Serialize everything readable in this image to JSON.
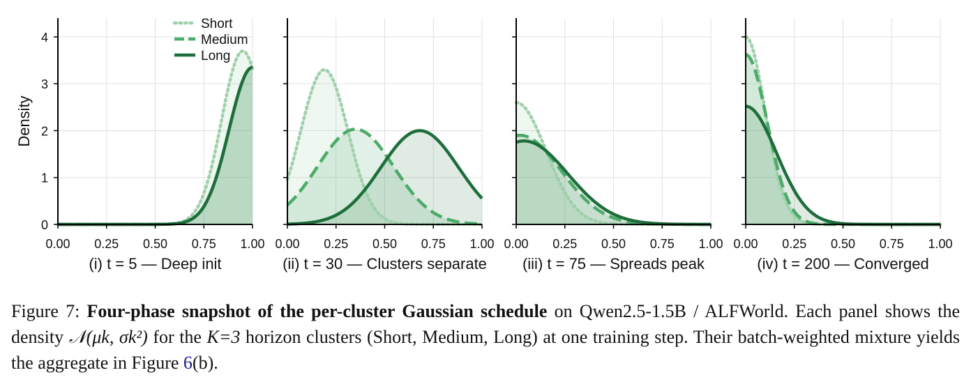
{
  "colors": {
    "short": "#9fd0aa",
    "medium": "#4caa6a",
    "long": "#1e6e3c",
    "grid": "#e0e0e0",
    "axis": "#000000"
  },
  "legend": {
    "location": "top-right of panel (i)",
    "items": [
      {
        "label": "Short",
        "series": "short",
        "dash": "dotted"
      },
      {
        "label": "Medium",
        "series": "medium",
        "dash": "dashed"
      },
      {
        "label": "Long",
        "series": "long",
        "dash": "solid"
      }
    ]
  },
  "chart_data": [
    {
      "type": "area",
      "title": "",
      "xlabel": "(i) t = 5 — Deep init",
      "ylabel": "Density",
      "xlim": [
        0,
        1
      ],
      "ylim": [
        0,
        4.4
      ],
      "x_ticks": [
        "0.00",
        "0.25",
        "0.50",
        "0.75",
        "1.00"
      ],
      "y_ticks": [
        "0",
        "1",
        "2",
        "3",
        "4"
      ],
      "grid": true,
      "series": [
        {
          "name": "Short",
          "mu": 0.95,
          "sigma": 0.108,
          "peak_density": 3.7
        },
        {
          "name": "Medium",
          "mu": 1.0,
          "sigma": 0.12,
          "peak_density": 3.35
        },
        {
          "name": "Long",
          "mu": 1.0,
          "sigma": 0.12,
          "peak_density": 3.35
        }
      ]
    },
    {
      "type": "area",
      "title": "",
      "xlabel": "(ii) t = 30 — Clusters separate",
      "xlim": [
        0,
        1
      ],
      "ylim": [
        0,
        4.4
      ],
      "x_ticks": [
        "0.00",
        "0.25",
        "0.50",
        "0.75",
        "1.00"
      ],
      "grid": true,
      "series": [
        {
          "name": "Short",
          "mu": 0.19,
          "sigma": 0.121,
          "peak_density": 3.3
        },
        {
          "name": "Medium",
          "mu": 0.35,
          "sigma": 0.196,
          "peak_density": 2.03
        },
        {
          "name": "Long",
          "mu": 0.68,
          "sigma": 0.2,
          "peak_density": 2.0
        }
      ]
    },
    {
      "type": "area",
      "title": "",
      "xlabel": "(iii) t = 75 — Spreads peak",
      "xlim": [
        0,
        1
      ],
      "ylim": [
        0,
        4.4
      ],
      "x_ticks": [
        "0.00",
        "0.25",
        "0.50",
        "0.75",
        "1.00"
      ],
      "grid": true,
      "series": [
        {
          "name": "Short",
          "mu": 0.0,
          "sigma": 0.153,
          "peak_density": 2.6
        },
        {
          "name": "Medium",
          "mu": 0.02,
          "sigma": 0.21,
          "peak_density": 1.9
        },
        {
          "name": "Long",
          "mu": 0.04,
          "sigma": 0.225,
          "peak_density": 1.78
        }
      ]
    },
    {
      "type": "area",
      "title": "",
      "xlabel": "(iv) t = 200 — Converged",
      "xlim": [
        0,
        1
      ],
      "ylim": [
        0,
        4.4
      ],
      "x_ticks": [
        "0.00",
        "0.25",
        "0.50",
        "0.75",
        "1.00"
      ],
      "grid": true,
      "series": [
        {
          "name": "Short",
          "mu": 0.0,
          "sigma": 0.1,
          "peak_density": 4.0
        },
        {
          "name": "Medium",
          "mu": 0.0,
          "sigma": 0.11,
          "peak_density": 3.62
        },
        {
          "name": "Long",
          "mu": 0.0,
          "sigma": 0.158,
          "peak_density": 2.52
        }
      ]
    }
  ],
  "caption": {
    "label": "Figure 7:",
    "bold": "Four-phase snapshot of the per-cluster Gaussian schedule",
    "text1": "on Qwen2.5-1.5B / ALFWorld. Each panel shows the density",
    "math": "𝒩(μk, σk²)",
    "text2": "for the",
    "math2": "K=3",
    "text3": "horizon clusters (Short, Medium, Long) at one training step. Their batch-weighted mixture yields the aggregate in Figure",
    "ref": "6",
    "text4": "(b)."
  }
}
